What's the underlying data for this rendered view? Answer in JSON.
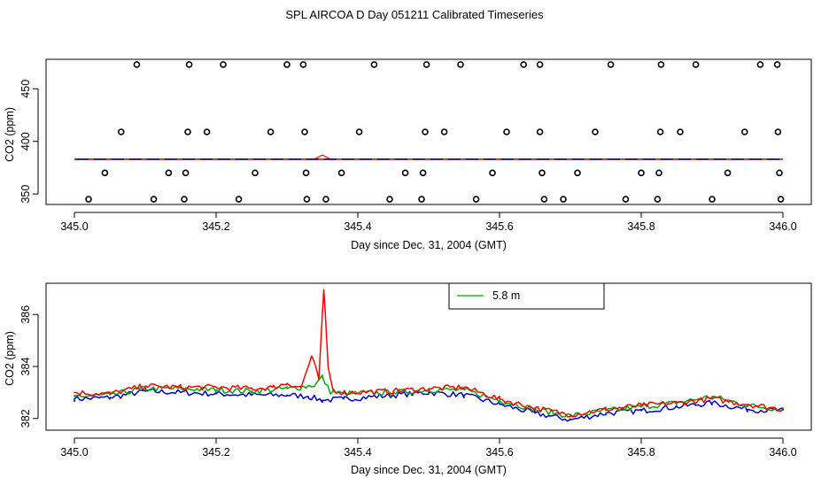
{
  "title": "SPL AIRCOA D  Day 051211  Calibrated Timeseries",
  "colors": {
    "red": "#ff0000",
    "green": "#00aa00",
    "blue": "#0000cc",
    "black": "#000000"
  },
  "chart_data": [
    {
      "type": "line",
      "name": "top-panel",
      "xlabel": "Day since Dec. 31, 2004 (GMT)",
      "ylabel": "CO2 (ppm)",
      "xlim": [
        345.0,
        346.0
      ],
      "ylim": [
        340,
        478
      ],
      "xticks": [
        345.0,
        345.2,
        345.4,
        345.6,
        345.8,
        346.0
      ],
      "xtick_labels": [
        "345.0",
        "345.2",
        "345.4",
        "345.6",
        "345.8",
        "346.0"
      ],
      "yticks": [
        350,
        400,
        450
      ],
      "ytick_labels": [
        "350",
        "400",
        "450"
      ],
      "calibration_points": [
        {
          "x": 345.088,
          "y": 473
        },
        {
          "x": 345.162,
          "y": 473
        },
        {
          "x": 345.21,
          "y": 473
        },
        {
          "x": 345.3,
          "y": 473
        },
        {
          "x": 345.323,
          "y": 473
        },
        {
          "x": 345.423,
          "y": 473
        },
        {
          "x": 345.497,
          "y": 473
        },
        {
          "x": 345.545,
          "y": 473
        },
        {
          "x": 345.634,
          "y": 473
        },
        {
          "x": 345.657,
          "y": 473
        },
        {
          "x": 345.757,
          "y": 473
        },
        {
          "x": 345.828,
          "y": 473
        },
        {
          "x": 345.877,
          "y": 473
        },
        {
          "x": 345.968,
          "y": 473
        },
        {
          "x": 345.992,
          "y": 473
        },
        {
          "x": 345.066,
          "y": 409
        },
        {
          "x": 345.16,
          "y": 409
        },
        {
          "x": 345.187,
          "y": 409
        },
        {
          "x": 345.277,
          "y": 409
        },
        {
          "x": 345.325,
          "y": 409
        },
        {
          "x": 345.402,
          "y": 409
        },
        {
          "x": 345.495,
          "y": 409
        },
        {
          "x": 345.522,
          "y": 409
        },
        {
          "x": 345.61,
          "y": 409
        },
        {
          "x": 345.657,
          "y": 409
        },
        {
          "x": 345.735,
          "y": 409
        },
        {
          "x": 345.827,
          "y": 409
        },
        {
          "x": 345.855,
          "y": 409
        },
        {
          "x": 345.946,
          "y": 409
        },
        {
          "x": 345.993,
          "y": 409
        },
        {
          "x": 345.043,
          "y": 370
        },
        {
          "x": 345.133,
          "y": 370
        },
        {
          "x": 345.157,
          "y": 370
        },
        {
          "x": 345.255,
          "y": 370
        },
        {
          "x": 345.327,
          "y": 370
        },
        {
          "x": 345.377,
          "y": 370
        },
        {
          "x": 345.467,
          "y": 370
        },
        {
          "x": 345.492,
          "y": 370
        },
        {
          "x": 345.59,
          "y": 370
        },
        {
          "x": 345.66,
          "y": 370
        },
        {
          "x": 345.71,
          "y": 370
        },
        {
          "x": 345.8,
          "y": 370
        },
        {
          "x": 345.825,
          "y": 370
        },
        {
          "x": 345.922,
          "y": 370
        },
        {
          "x": 345.995,
          "y": 370
        },
        {
          "x": 345.02,
          "y": 345
        },
        {
          "x": 345.112,
          "y": 345
        },
        {
          "x": 345.155,
          "y": 345
        },
        {
          "x": 345.232,
          "y": 345
        },
        {
          "x": 345.328,
          "y": 345
        },
        {
          "x": 345.355,
          "y": 345
        },
        {
          "x": 345.445,
          "y": 345
        },
        {
          "x": 345.49,
          "y": 345
        },
        {
          "x": 345.567,
          "y": 345
        },
        {
          "x": 345.663,
          "y": 345
        },
        {
          "x": 345.69,
          "y": 345
        },
        {
          "x": 345.778,
          "y": 345
        },
        {
          "x": 345.823,
          "y": 345
        },
        {
          "x": 345.9,
          "y": 345
        },
        {
          "x": 345.997,
          "y": 345
        }
      ],
      "series_level": {
        "x_start": 345.0,
        "x_end": 346.0,
        "y": 383,
        "peak_x": 345.35,
        "peak_y": 387
      }
    },
    {
      "type": "line",
      "name": "bottom-panel",
      "xlabel": "Day since Dec. 31, 2004 (GMT)",
      "ylabel": "CO2 (ppm)",
      "xlim": [
        345.0,
        346.0
      ],
      "ylim": [
        381.55,
        387.2
      ],
      "xticks": [
        345.0,
        345.2,
        345.4,
        345.6,
        345.8,
        346.0
      ],
      "xtick_labels": [
        "345.0",
        "345.2",
        "345.4",
        "345.6",
        "345.8",
        "346.0"
      ],
      "yticks": [
        382,
        384,
        386
      ],
      "ytick_labels": [
        "382",
        "384",
        "386"
      ],
      "legend": {
        "label": "5.8 m",
        "color": "#00aa00",
        "placement": "top-center"
      },
      "series": [
        {
          "name": "red",
          "color": "#ff0000",
          "x": [
            345.0,
            345.05,
            345.1,
            345.15,
            345.2,
            345.25,
            345.28,
            345.3,
            345.32,
            345.335,
            345.345,
            345.352,
            345.358,
            345.365,
            345.38,
            345.45,
            345.5,
            345.55,
            345.6,
            345.65,
            345.7,
            345.75,
            345.8,
            345.85,
            345.9,
            345.95,
            346.0
          ],
          "y": [
            383.0,
            382.95,
            383.25,
            383.2,
            383.2,
            383.15,
            383.2,
            383.35,
            383.2,
            384.4,
            383.5,
            386.95,
            384.0,
            383.1,
            383.0,
            383.05,
            383.15,
            383.2,
            382.75,
            382.4,
            382.15,
            382.35,
            382.5,
            382.6,
            382.75,
            382.55,
            382.35
          ]
        },
        {
          "name": "green",
          "color": "#00aa00",
          "x": [
            345.0,
            345.05,
            345.1,
            345.15,
            345.2,
            345.25,
            345.3,
            345.32,
            345.34,
            345.35,
            345.36,
            345.38,
            345.45,
            345.5,
            345.55,
            345.6,
            345.65,
            345.7,
            345.75,
            345.8,
            345.85,
            345.9,
            345.95,
            346.0
          ],
          "y": [
            382.85,
            382.9,
            383.15,
            383.15,
            383.1,
            383.05,
            383.15,
            383.2,
            383.3,
            383.6,
            383.05,
            382.95,
            383.0,
            383.1,
            383.1,
            382.7,
            382.35,
            382.1,
            382.3,
            382.45,
            382.6,
            382.85,
            382.5,
            382.35
          ]
        },
        {
          "name": "blue",
          "color": "#0000cc",
          "x": [
            345.0,
            345.05,
            345.1,
            345.15,
            345.2,
            345.25,
            345.3,
            345.33,
            345.35,
            345.38,
            345.45,
            345.5,
            345.55,
            345.6,
            345.65,
            345.7,
            345.75,
            345.8,
            345.85,
            345.9,
            345.95,
            346.0
          ],
          "y": [
            382.75,
            382.8,
            383.05,
            383.0,
            382.95,
            382.9,
            382.9,
            382.85,
            382.7,
            382.75,
            382.9,
            383.0,
            382.9,
            382.55,
            382.2,
            381.95,
            382.2,
            382.3,
            382.45,
            382.6,
            382.35,
            382.3
          ]
        }
      ]
    }
  ]
}
